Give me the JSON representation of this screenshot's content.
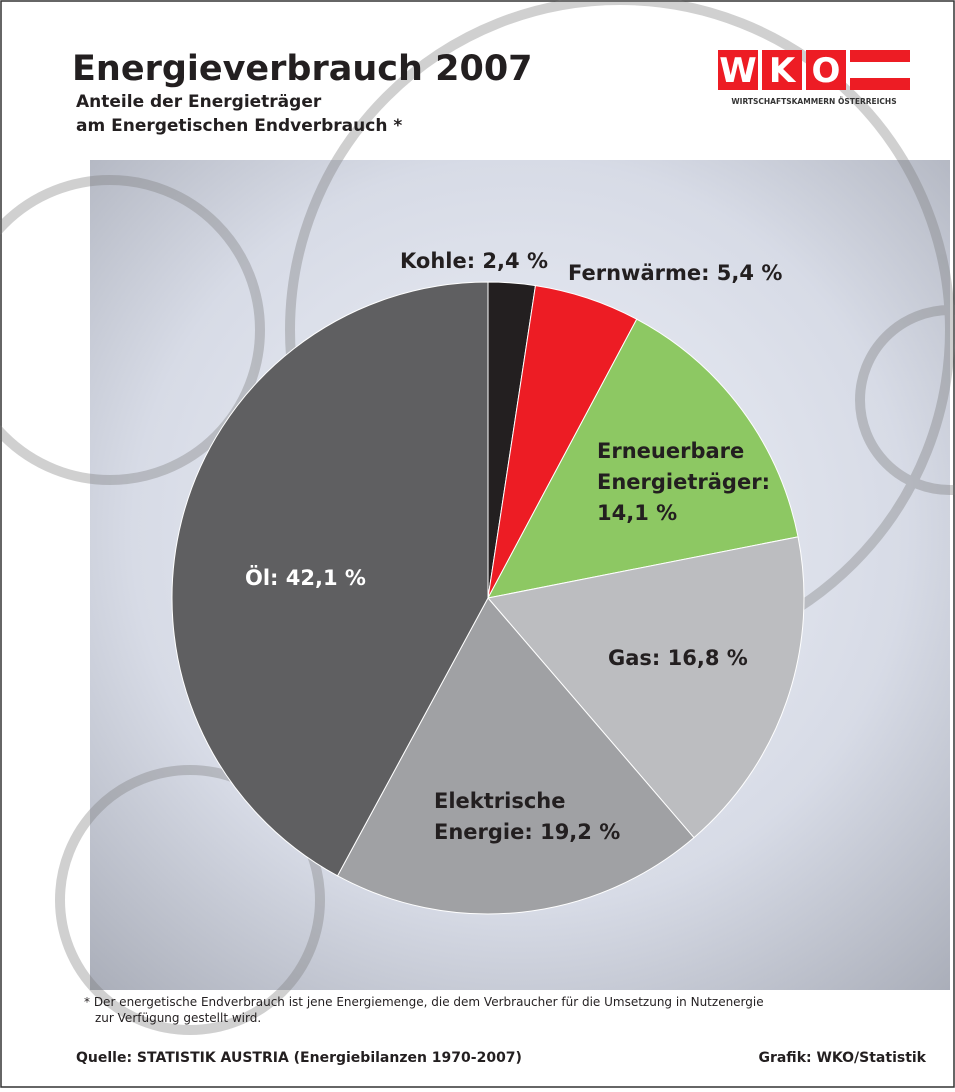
{
  "header": {
    "title": "Energieverbrauch 2007",
    "subtitle": [
      "Anteile der Energieträger",
      "am Energetischen Endverbrauch *"
    ]
  },
  "logo": {
    "letters": [
      "W",
      "K",
      "O"
    ],
    "tagline": "WIRTSCHAFTSKAMMERN ÖSTERREICHS"
  },
  "chart_data": {
    "type": "pie",
    "values": [
      2.4,
      5.4,
      14.1,
      16.8,
      19.2,
      42.1
    ],
    "value_labels": [
      [
        "Kohle: 2,4 %"
      ],
      [
        "Fernwärme: 5,4 %"
      ],
      [
        "Erneuerbare",
        "Energieträger:",
        "14,1 %"
      ],
      [
        "Gas: 16,8 %"
      ],
      [
        "Elektrische",
        "Energie: 19,2 %"
      ],
      [
        "Öl: 42,1 %"
      ]
    ],
    "colors": [
      "#231f20",
      "#ed1c24",
      "#8dc863",
      "#bcbdc0",
      "#a0a1a4",
      "#5f5f61"
    ]
  },
  "footer": {
    "note": [
      "* Der energetische Endverbrauch ist jene Energiemenge, die dem Verbraucher für die Umsetzung in Nutzenergie",
      "zur Verfügung gestellt wird."
    ],
    "source": "Quelle: STATISTIK AUSTRIA (Energiebilanzen 1970-2007)",
    "credit": "Grafik: WKO/Statistik"
  }
}
